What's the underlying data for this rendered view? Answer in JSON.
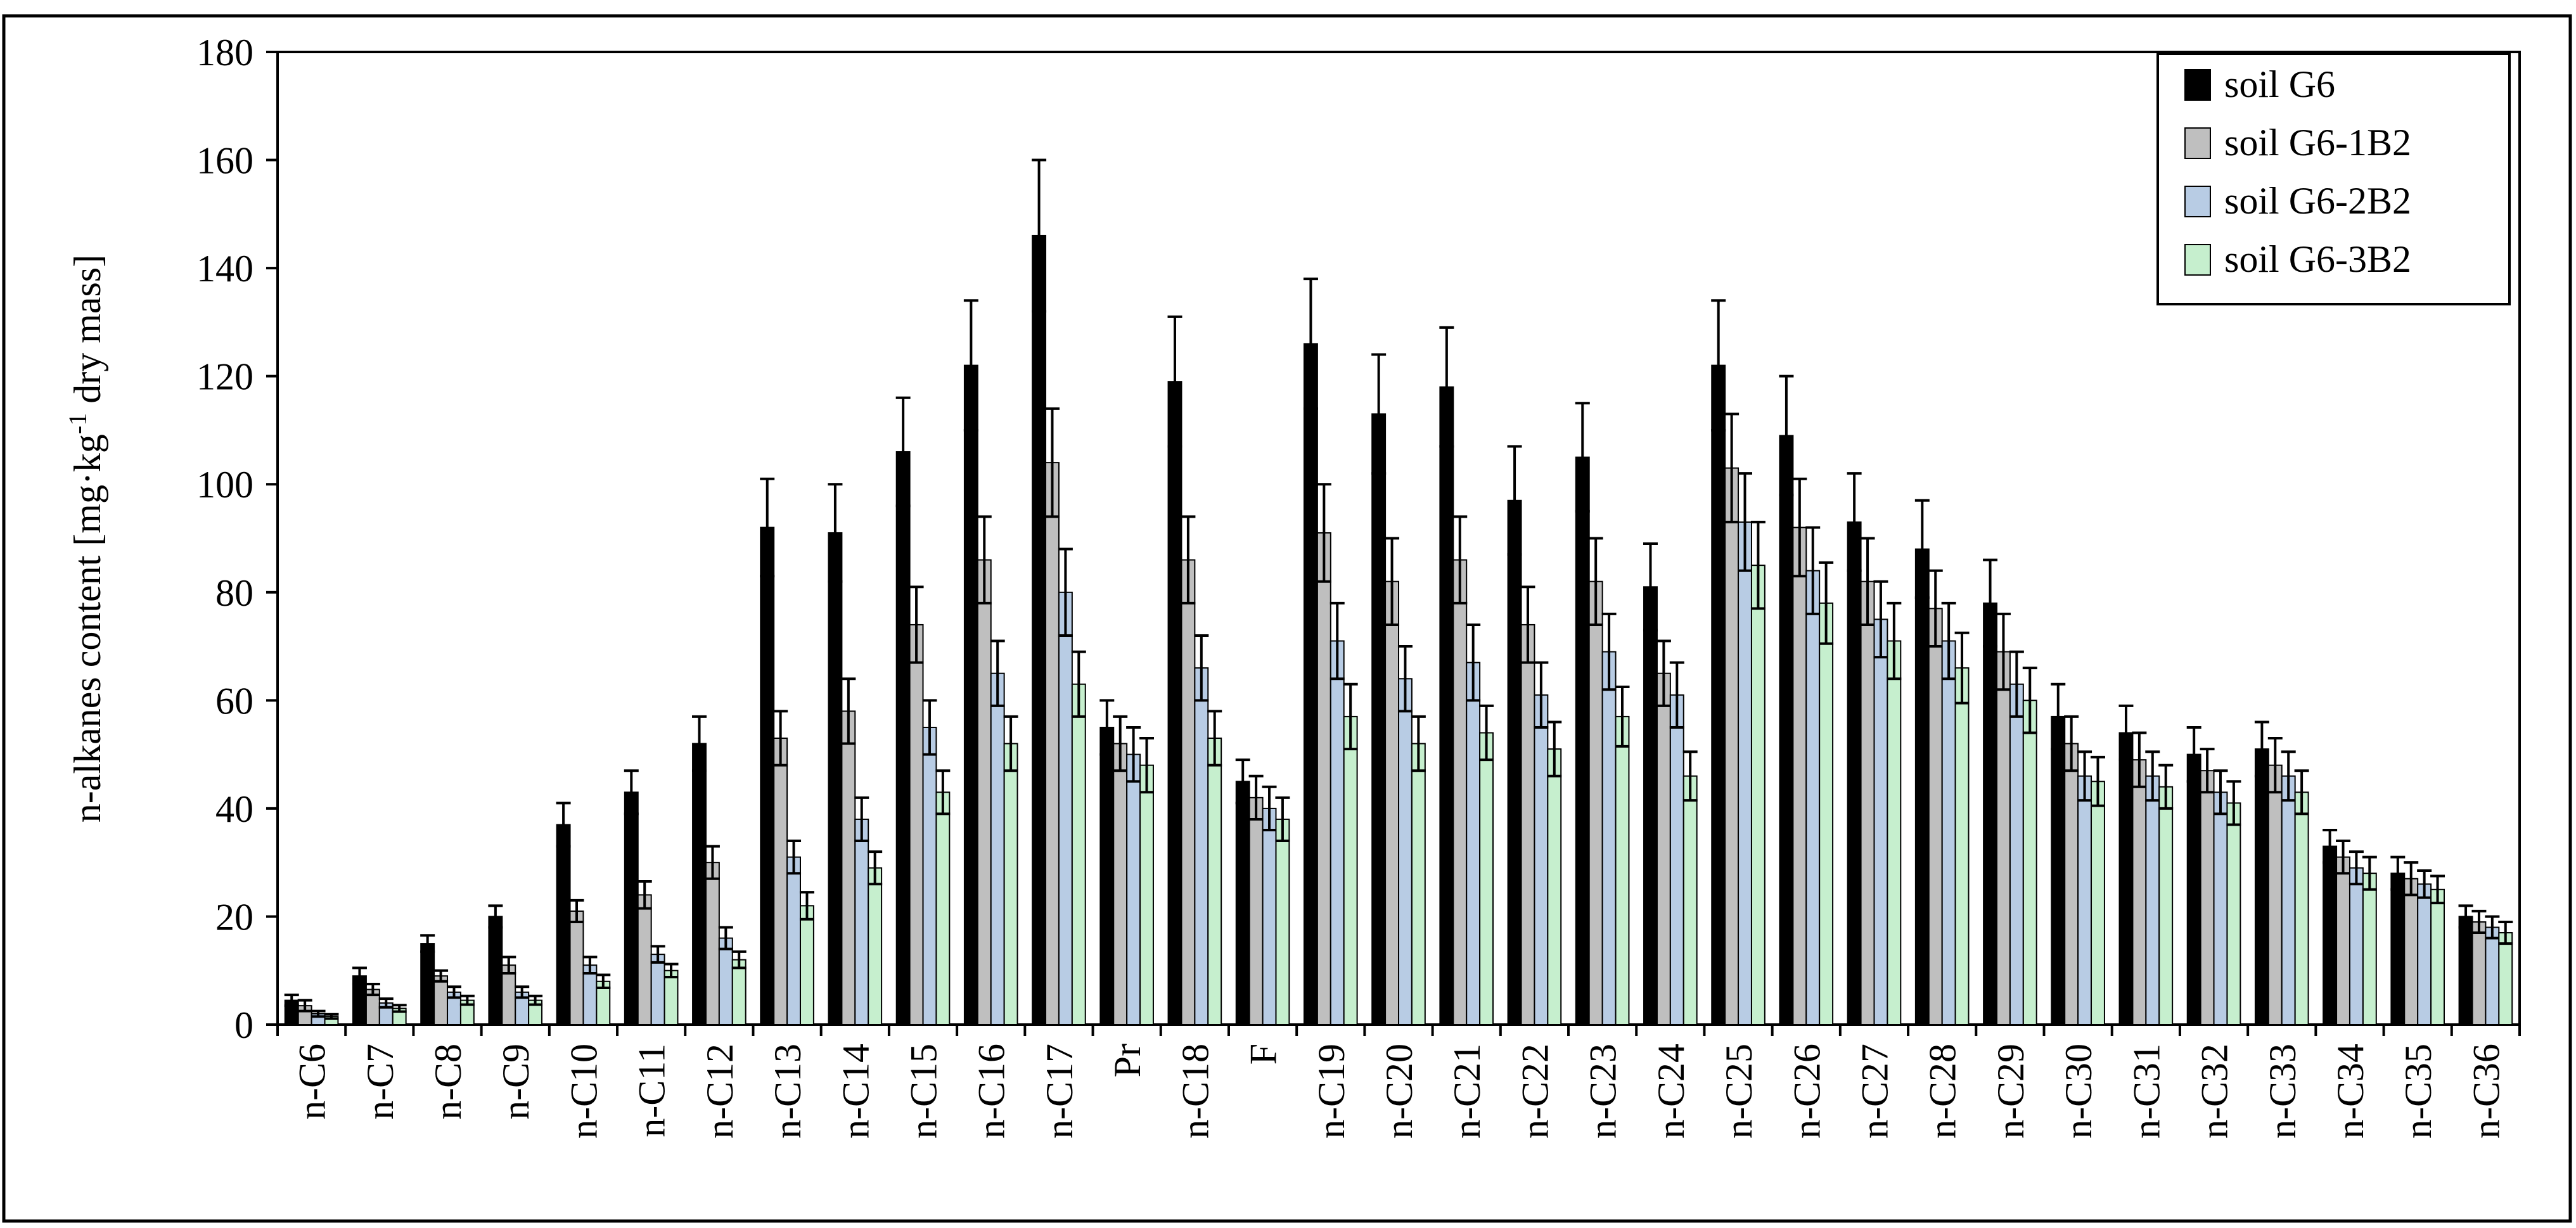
{
  "chart_data": {
    "type": "bar",
    "ylabel_main": "n-alkanes content [mg·kg",
    "ylabel_sup": "-1",
    "ylabel_tail": " dry mass]",
    "ylim": [
      0,
      180
    ],
    "yticks": [
      0,
      20,
      40,
      60,
      80,
      100,
      120,
      140,
      160,
      180
    ],
    "grid": false,
    "legend_position": "top-right",
    "error_bars": true,
    "categories": [
      "n-C6",
      "n-C7",
      "n-C8",
      "n-C9",
      "n-C10",
      "n-C11",
      "n-C12",
      "n-C13",
      "n-C14",
      "n-C15",
      "n-C16",
      "n-C17",
      "Pr",
      "n-C18",
      "F",
      "n-C19",
      "n-C20",
      "n-C21",
      "n-C22",
      "n-C23",
      "n-C24",
      "n-C25",
      "n-C26",
      "n-C27",
      "n-C28",
      "n-C29",
      "n-C30",
      "n-C31",
      "n-C32",
      "n-C33",
      "n-C34",
      "n-C35",
      "n-C36"
    ],
    "series": [
      {
        "name": "soil G6",
        "color": "#000000",
        "values": [
          4.5,
          9,
          15,
          20,
          37,
          43,
          52,
          92,
          91,
          106,
          122,
          146,
          55,
          119,
          45,
          126,
          113,
          118,
          97,
          105,
          81,
          122,
          109,
          93,
          88,
          78,
          57,
          54,
          50,
          51,
          33,
          28,
          20
        ],
        "errors": [
          1,
          1.5,
          1.5,
          2,
          4,
          4,
          5,
          9,
          9,
          10,
          12,
          14,
          5,
          12,
          4,
          12,
          11,
          11,
          10,
          10,
          8,
          12,
          11,
          9,
          9,
          8,
          6,
          5,
          5,
          5,
          3,
          3,
          2
        ]
      },
      {
        "name": "soil G6-1B2",
        "color": "#bfbfbf",
        "values": [
          3.5,
          6.5,
          9,
          11,
          21,
          24,
          30,
          53,
          58,
          74,
          86,
          104,
          52,
          86,
          42,
          91,
          82,
          86,
          74,
          82,
          65,
          103,
          92,
          82,
          77,
          69,
          52,
          49,
          47,
          48,
          31,
          27,
          19
        ],
        "errors": [
          1,
          1,
          1,
          1.5,
          2,
          2.5,
          3,
          5,
          6,
          7,
          8,
          10,
          5,
          8,
          4,
          9,
          8,
          8,
          7,
          8,
          6,
          10,
          9,
          8,
          7,
          7,
          5,
          5,
          4,
          5,
          3,
          3,
          2
        ]
      },
      {
        "name": "soil G6-2B2",
        "color": "#b8cce4",
        "values": [
          2,
          4,
          6,
          6,
          11,
          13,
          16,
          31,
          38,
          55,
          65,
          80,
          50,
          66,
          40,
          71,
          64,
          67,
          61,
          69,
          61,
          93,
          84,
          75,
          71,
          63,
          46,
          46,
          43,
          46,
          29,
          26,
          18
        ],
        "errors": [
          0.5,
          0.8,
          1,
          1,
          1.5,
          1.5,
          2,
          3,
          4,
          5,
          6,
          8,
          5,
          6,
          4,
          7,
          6,
          7,
          6,
          7,
          6,
          9,
          8,
          7,
          7,
          6,
          4.5,
          4.5,
          4,
          4.5,
          3,
          2.5,
          2
        ]
      },
      {
        "name": "soil G6-3B2",
        "color": "#c6efce",
        "values": [
          1.5,
          3,
          4.5,
          4.5,
          8,
          10,
          12,
          22,
          29,
          43,
          52,
          63,
          48,
          53,
          38,
          57,
          52,
          54,
          51,
          57,
          46,
          85,
          78,
          71,
          66,
          60,
          45,
          44,
          41,
          43,
          28,
          25,
          17
        ],
        "errors": [
          0.4,
          0.6,
          0.8,
          0.8,
          1.2,
          1.2,
          1.5,
          2.5,
          3,
          4,
          5,
          6,
          5,
          5,
          4,
          6,
          5,
          5,
          5,
          5.5,
          4.5,
          8,
          7.5,
          7,
          6.5,
          6,
          4.5,
          4,
          4,
          4,
          3,
          2.5,
          2
        ]
      }
    ]
  }
}
